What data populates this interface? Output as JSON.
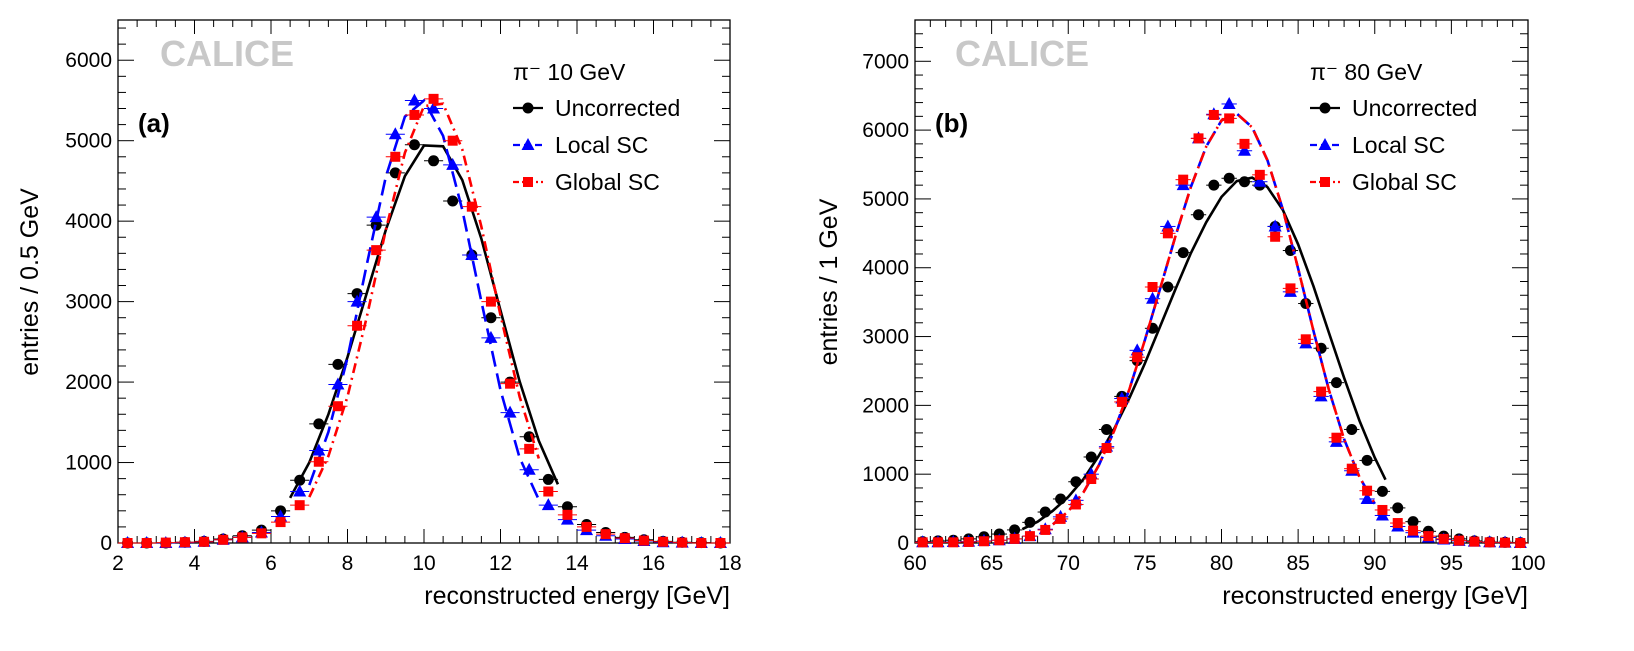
{
  "chart_data": [
    {
      "type": "scatter",
      "panel_label": "(a)",
      "watermark": "CALICE",
      "legend_header": "π⁻  10 GeV",
      "legend_placement": "top-right",
      "xlabel": "reconstructed energy [GeV]",
      "ylabel": "entries / 0.5 GeV",
      "xlim": [
        2,
        18
      ],
      "ylim": [
        0,
        6500
      ],
      "xticks": [
        2,
        4,
        6,
        8,
        10,
        12,
        14,
        16,
        18
      ],
      "yticks": [
        0,
        1000,
        2000,
        3000,
        4000,
        5000,
        6000
      ],
      "series": [
        {
          "name": "Uncorrected",
          "color": "#000000",
          "marker": "circle",
          "line": "solid",
          "x": [
            2.25,
            2.75,
            3.25,
            3.75,
            4.25,
            4.75,
            5.25,
            5.75,
            6.25,
            6.75,
            7.25,
            7.75,
            8.25,
            8.75,
            9.25,
            9.75,
            10.25,
            10.75,
            11.25,
            11.75,
            12.25,
            12.75,
            13.25,
            13.75,
            14.25,
            14.75,
            15.25,
            15.75,
            16.25,
            16.75,
            17.25,
            17.75
          ],
          "y": [
            0,
            0,
            0,
            10,
            20,
            50,
            90,
            160,
            400,
            780,
            1480,
            2220,
            3100,
            3950,
            4600,
            4950,
            4750,
            4250,
            3580,
            2800,
            2000,
            1320,
            790,
            450,
            230,
            130,
            70,
            40,
            20,
            10,
            5,
            0
          ],
          "fit": {
            "x": [
              6.5,
              7,
              7.5,
              8,
              8.5,
              9,
              9.5,
              10,
              10.5,
              11,
              11.5,
              12,
              12.5,
              13,
              13.5
            ],
            "y": [
              560,
              1000,
              1600,
              2310,
              3100,
              3890,
              4560,
              4940,
              4930,
              4510,
              3780,
              2890,
              2010,
              1270,
              730
            ]
          }
        },
        {
          "name": "Local SC",
          "color": "#0000ff",
          "marker": "triangle",
          "line": "dashed",
          "x": [
            2.25,
            2.75,
            3.25,
            3.75,
            4.25,
            4.75,
            5.25,
            5.75,
            6.25,
            6.75,
            7.25,
            7.75,
            8.25,
            8.75,
            9.25,
            9.75,
            10.25,
            10.75,
            11.25,
            11.75,
            12.25,
            12.75,
            13.25,
            13.75,
            14.25,
            14.75,
            15.25,
            15.75,
            16.25,
            16.75,
            17.25,
            17.75
          ],
          "y": [
            0,
            0,
            0,
            5,
            15,
            40,
            70,
            130,
            330,
            640,
            1150,
            1970,
            3000,
            4050,
            5080,
            5500,
            5400,
            4700,
            3580,
            2550,
            1620,
            910,
            470,
            290,
            160,
            90,
            50,
            25,
            10,
            5,
            0,
            0
          ],
          "fit": {
            "x": [
              7,
              7.5,
              8,
              8.5,
              9,
              9.5,
              10,
              10.5,
              11,
              11.5,
              12,
              12.5,
              13
            ],
            "y": [
              720,
              1380,
              2300,
              3450,
              4550,
              5300,
              5500,
              5060,
              4140,
              3000,
              1900,
              1060,
              540
            ]
          }
        },
        {
          "name": "Global SC",
          "color": "#ff0000",
          "marker": "square",
          "line": "dashdot",
          "x": [
            2.25,
            2.75,
            3.25,
            3.75,
            4.25,
            4.75,
            5.25,
            5.75,
            6.25,
            6.75,
            7.25,
            7.75,
            8.25,
            8.75,
            9.25,
            9.75,
            10.25,
            10.75,
            11.25,
            11.75,
            12.25,
            12.75,
            13.25,
            13.75,
            14.25,
            14.75,
            15.25,
            15.75,
            16.25,
            16.75,
            17.25,
            17.75
          ],
          "y": [
            0,
            0,
            5,
            10,
            15,
            40,
            70,
            120,
            260,
            470,
            1010,
            1700,
            2700,
            3640,
            4800,
            5320,
            5520,
            5000,
            4180,
            3000,
            1980,
            1170,
            640,
            350,
            200,
            110,
            60,
            30,
            15,
            5,
            0,
            0
          ],
          "fit": {
            "x": [
              7,
              7.5,
              8,
              8.5,
              9,
              9.5,
              10,
              10.5,
              11,
              11.5,
              12,
              12.5,
              13
            ],
            "y": [
              570,
              1080,
              1820,
              2800,
              3890,
              4850,
              5430,
              5460,
              4890,
              3930,
              2830,
              1820,
              1050
            ]
          }
        }
      ]
    },
    {
      "type": "scatter",
      "panel_label": "(b)",
      "watermark": "CALICE",
      "legend_header": "π⁻  80 GeV",
      "legend_placement": "top-right",
      "xlabel": "reconstructed energy [GeV]",
      "ylabel": "entries / 1 GeV",
      "xlim": [
        60,
        100
      ],
      "ylim": [
        0,
        7600
      ],
      "xticks": [
        60,
        65,
        70,
        75,
        80,
        85,
        90,
        95,
        100
      ],
      "yticks": [
        0,
        1000,
        2000,
        3000,
        4000,
        5000,
        6000,
        7000
      ],
      "series": [
        {
          "name": "Uncorrected",
          "color": "#000000",
          "marker": "circle",
          "line": "solid",
          "x": [
            60.5,
            61.5,
            62.5,
            63.5,
            64.5,
            65.5,
            66.5,
            67.5,
            68.5,
            69.5,
            70.5,
            71.5,
            72.5,
            73.5,
            74.5,
            75.5,
            76.5,
            77.5,
            78.5,
            79.5,
            80.5,
            81.5,
            82.5,
            83.5,
            84.5,
            85.5,
            86.5,
            87.5,
            88.5,
            89.5,
            90.5,
            91.5,
            92.5,
            93.5,
            94.5,
            95.5,
            96.5,
            97.5,
            98.5,
            99.5
          ],
          "y": [
            20,
            30,
            40,
            60,
            90,
            130,
            190,
            300,
            450,
            640,
            890,
            1250,
            1650,
            2130,
            2650,
            3120,
            3720,
            4220,
            4770,
            5200,
            5300,
            5250,
            5200,
            4600,
            4250,
            3480,
            2830,
            2330,
            1650,
            1200,
            750,
            510,
            310,
            170,
            100,
            60,
            30,
            15,
            10,
            5
          ],
          "fit": {
            "x": [
              67,
              68,
              69,
              70,
              71,
              72,
              73,
              74,
              75,
              76,
              77,
              78,
              79,
              80,
              81,
              82,
              83,
              84,
              85,
              86,
              87,
              88,
              89,
              90,
              90.7
            ],
            "y": [
              200,
              310,
              470,
              670,
              930,
              1270,
              1660,
              2110,
              2610,
              3150,
              3690,
              4210,
              4660,
              5030,
              5260,
              5310,
              5170,
              4840,
              4340,
              3730,
              3060,
              2400,
              1780,
              1240,
              920
            ]
          }
        },
        {
          "name": "Local SC",
          "color": "#0000ff",
          "marker": "triangle",
          "line": "dashed",
          "x": [
            60.5,
            61.5,
            62.5,
            63.5,
            64.5,
            65.5,
            66.5,
            67.5,
            68.5,
            69.5,
            70.5,
            71.5,
            72.5,
            73.5,
            74.5,
            75.5,
            76.5,
            77.5,
            78.5,
            79.5,
            80.5,
            81.5,
            82.5,
            83.5,
            84.5,
            85.5,
            86.5,
            87.5,
            88.5,
            89.5,
            90.5,
            91.5,
            92.5,
            93.5,
            94.5,
            95.5,
            96.5,
            97.5,
            98.5,
            99.5
          ],
          "y": [
            10,
            10,
            15,
            20,
            30,
            40,
            60,
            100,
            200,
            380,
            620,
            1000,
            1400,
            2100,
            2800,
            3550,
            4600,
            5200,
            5880,
            6230,
            6380,
            5700,
            5250,
            4600,
            3650,
            2900,
            2130,
            1470,
            1050,
            640,
            400,
            240,
            150,
            80,
            50,
            30,
            20,
            10,
            5,
            0
          ],
          "fit": {
            "x": [
              69,
              70,
              71,
              72,
              73,
              74,
              75,
              76,
              77,
              78,
              79,
              80,
              81,
              82,
              83,
              84,
              85,
              86,
              87,
              88,
              89,
              90
            ],
            "y": [
              270,
              460,
              740,
              1130,
              1630,
              2240,
              2950,
              3700,
              4460,
              5170,
              5760,
              6140,
              6240,
              6040,
              5560,
              4850,
              3990,
              3080,
              2230,
              1510,
              960,
              570
            ]
          }
        },
        {
          "name": "Global SC",
          "color": "#ff0000",
          "marker": "square",
          "line": "dashdot",
          "x": [
            60.5,
            61.5,
            62.5,
            63.5,
            64.5,
            65.5,
            66.5,
            67.5,
            68.5,
            69.5,
            70.5,
            71.5,
            72.5,
            73.5,
            74.5,
            75.5,
            76.5,
            77.5,
            78.5,
            79.5,
            80.5,
            81.5,
            82.5,
            83.5,
            84.5,
            85.5,
            86.5,
            87.5,
            88.5,
            89.5,
            90.5,
            91.5,
            92.5,
            93.5,
            94.5,
            95.5,
            96.5,
            97.5,
            98.5,
            99.5
          ],
          "y": [
            10,
            10,
            10,
            15,
            25,
            40,
            60,
            100,
            190,
            350,
            560,
            930,
            1380,
            2050,
            2700,
            3720,
            4500,
            5280,
            5880,
            6220,
            6170,
            5800,
            5350,
            4450,
            3700,
            2960,
            2200,
            1530,
            1080,
            760,
            480,
            290,
            180,
            100,
            60,
            35,
            20,
            10,
            5,
            0
          ],
          "fit": {
            "x": [
              69,
              70,
              71,
              72,
              73,
              74,
              75,
              76,
              77,
              78,
              79,
              80,
              81,
              82,
              83,
              84,
              85,
              86,
              87,
              88,
              89,
              90
            ],
            "y": [
              270,
              460,
              740,
              1130,
              1630,
              2240,
              2950,
              3700,
              4460,
              5170,
              5760,
              6140,
              6240,
              6040,
              5560,
              4850,
              3990,
              3080,
              2230,
              1510,
              960,
              570
            ]
          }
        }
      ]
    }
  ]
}
